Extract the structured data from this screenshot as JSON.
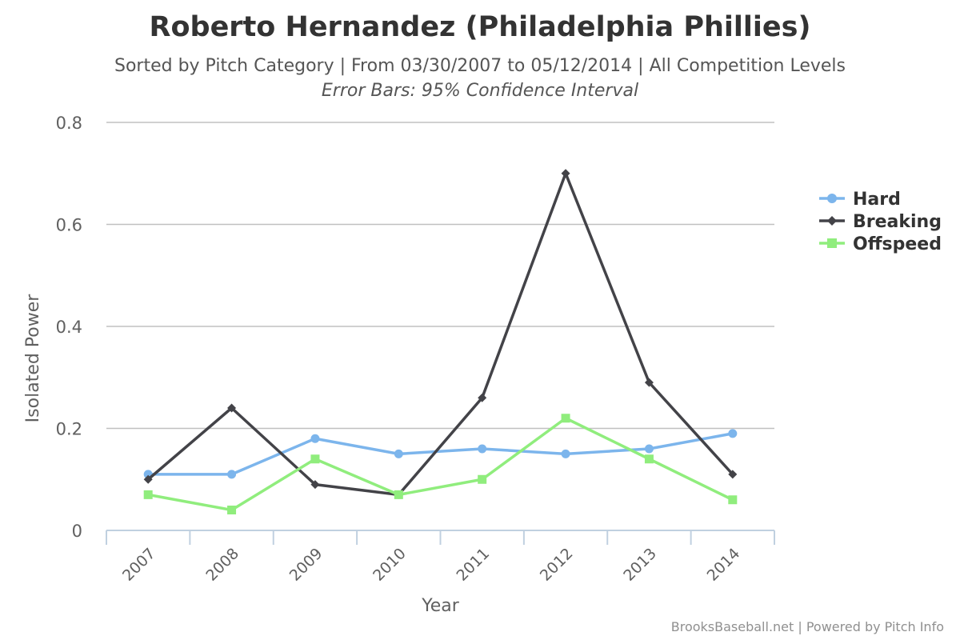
{
  "chart_data": {
    "type": "line",
    "title": "Roberto Hernandez (Philadelphia Phillies)",
    "subtitle": "Sorted by Pitch Category | From 03/30/2007 to 05/12/2014 | All Competition Levels",
    "subtitle2": "Error Bars: 95% Confidence Interval",
    "xlabel": "Year",
    "ylabel": "Isolated Power",
    "categories": [
      "2007",
      "2008",
      "2009",
      "2010",
      "2011",
      "2012",
      "2013",
      "2014"
    ],
    "ylim": [
      0,
      0.8
    ],
    "yticks": [
      "0",
      "0.2",
      "0.4",
      "0.6",
      "0.8"
    ],
    "grid": true,
    "legend_position": "right",
    "series": [
      {
        "name": "Hard",
        "color": "#7cb5ec",
        "marker": "circle",
        "values": [
          0.11,
          0.11,
          0.18,
          0.15,
          0.16,
          0.15,
          0.16,
          0.19
        ]
      },
      {
        "name": "Breaking",
        "color": "#434348",
        "marker": "diamond",
        "values": [
          0.1,
          0.24,
          0.09,
          0.07,
          0.26,
          0.7,
          0.29,
          0.11
        ]
      },
      {
        "name": "Offspeed",
        "color": "#90ed7d",
        "marker": "square",
        "values": [
          0.07,
          0.04,
          0.14,
          0.07,
          0.1,
          0.22,
          0.14,
          0.06
        ]
      }
    ]
  },
  "credits": "BrooksBaseball.net | Powered by Pitch Info"
}
